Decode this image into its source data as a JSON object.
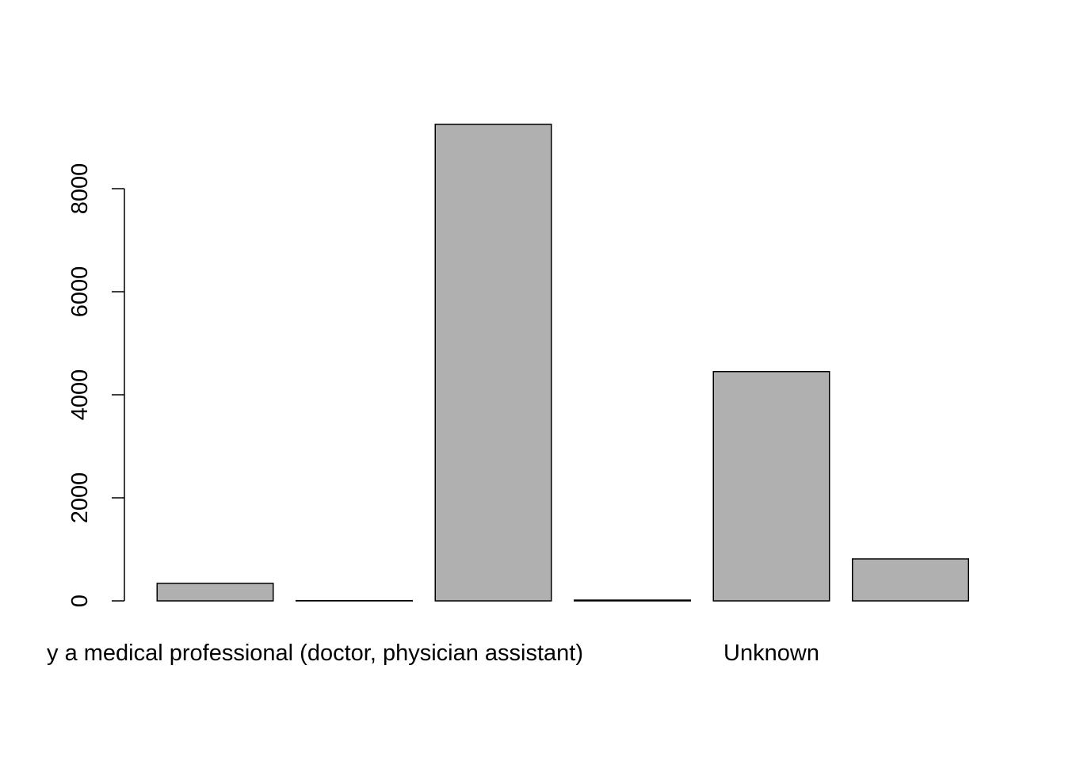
{
  "chart_data": {
    "type": "bar",
    "categories": [
      "y a medical professional (doctor, physician assistant)",
      null,
      null,
      null,
      "Unknown",
      null
    ],
    "values": [
      340,
      5,
      9250,
      15,
      4450,
      815
    ],
    "color": "#b0b0b0",
    "ylim": [
      0,
      9600
    ],
    "yticks": [
      0,
      2000,
      4000,
      6000,
      8000
    ]
  }
}
